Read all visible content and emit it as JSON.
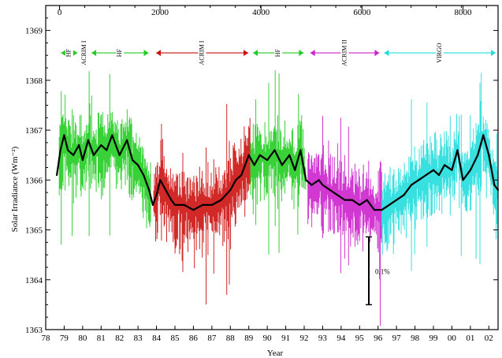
{
  "chart_data": {
    "type": "line",
    "title": "",
    "xlabel": "Year",
    "ylabel": "Solar Irradiance (Wm⁻²)",
    "xlim": [
      1978.0,
      2002.5
    ],
    "ylim": [
      1363,
      1369.5
    ],
    "grid": false,
    "x_ticks": [
      "78",
      "79",
      "80",
      "81",
      "82",
      "83",
      "84",
      "85",
      "86",
      "87",
      "88",
      "89",
      "90",
      "91",
      "92",
      "93",
      "94",
      "95",
      "96",
      "97",
      "98",
      "99",
      "00",
      "01",
      "02"
    ],
    "y_ticks": [
      1363,
      1364,
      1365,
      1366,
      1367,
      1368,
      1369
    ],
    "top_axis": {
      "label_values": [
        0,
        2000,
        4000,
        6000,
        8000
      ],
      "label_years": [
        1978.75,
        1984.19,
        1989.66,
        1995.13,
        2000.6
      ]
    },
    "instrument_bands": [
      {
        "name": "HF",
        "x_start": 1978.7,
        "x_end": 1979.85,
        "color": "#22cc22"
      },
      {
        "name": "ACRIM I",
        "x_start": 1979.85,
        "x_end": 1980.35,
        "color": "#22cc22"
      },
      {
        "name": "HF",
        "x_start": 1980.35,
        "x_end": 1983.7,
        "color": "#22cc22"
      },
      {
        "name": "ACRIM I",
        "x_start": 1983.85,
        "x_end": 1989.1,
        "color": "#cc1111"
      },
      {
        "name": "HF",
        "x_start": 1989.1,
        "x_end": 1992.1,
        "color": "#22cc22"
      },
      {
        "name": "ACRIM II",
        "x_start": 1992.2,
        "x_end": 1996.2,
        "color": "#cc22cc"
      },
      {
        "name": "VIRGO",
        "x_start": 1996.2,
        "x_end": 2002.5,
        "color": "#22dddd"
      }
    ],
    "annotation": {
      "text": "0.1%",
      "x": 1995.5,
      "y_from": 1363.5,
      "y_to": 1364.86
    },
    "series": [
      {
        "color": "#000000",
        "points": [
          [
            1978.6,
            1366.1
          ],
          [
            1978.8,
            1366.6
          ],
          [
            1979.0,
            1366.9
          ],
          [
            1979.2,
            1366.6
          ],
          [
            1979.5,
            1366.5
          ],
          [
            1979.8,
            1366.7
          ],
          [
            1980.0,
            1366.4
          ],
          [
            1980.3,
            1366.8
          ],
          [
            1980.6,
            1366.5
          ],
          [
            1981.0,
            1366.7
          ],
          [
            1981.3,
            1366.6
          ],
          [
            1981.6,
            1366.9
          ],
          [
            1982.0,
            1366.5
          ],
          [
            1982.4,
            1366.8
          ],
          [
            1982.7,
            1366.4
          ],
          [
            1983.0,
            1366.3
          ],
          [
            1983.3,
            1366.1
          ],
          [
            1983.6,
            1365.8
          ],
          [
            1983.8,
            1365.5
          ],
          [
            1984.0,
            1365.7
          ],
          [
            1984.2,
            1366.0
          ],
          [
            1984.5,
            1365.8
          ],
          [
            1984.8,
            1365.6
          ],
          [
            1985.0,
            1365.5
          ],
          [
            1985.5,
            1365.5
          ],
          [
            1986.0,
            1365.4
          ],
          [
            1986.5,
            1365.5
          ],
          [
            1987.0,
            1365.5
          ],
          [
            1987.5,
            1365.6
          ],
          [
            1988.0,
            1365.8
          ],
          [
            1988.3,
            1366.0
          ],
          [
            1988.6,
            1366.1
          ],
          [
            1989.0,
            1366.5
          ],
          [
            1989.3,
            1366.3
          ],
          [
            1989.6,
            1366.5
          ],
          [
            1990.0,
            1366.4
          ],
          [
            1990.4,
            1366.6
          ],
          [
            1990.8,
            1366.3
          ],
          [
            1991.2,
            1366.5
          ],
          [
            1991.5,
            1366.2
          ],
          [
            1991.8,
            1366.6
          ],
          [
            1992.1,
            1366.0
          ],
          [
            1992.4,
            1365.9
          ],
          [
            1992.8,
            1366.0
          ],
          [
            1993.0,
            1365.9
          ],
          [
            1993.4,
            1365.8
          ],
          [
            1993.8,
            1365.7
          ],
          [
            1994.2,
            1365.6
          ],
          [
            1994.6,
            1365.6
          ],
          [
            1995.0,
            1365.5
          ],
          [
            1995.4,
            1365.6
          ],
          [
            1995.8,
            1365.4
          ],
          [
            1996.2,
            1365.4
          ],
          [
            1996.6,
            1365.5
          ],
          [
            1997.0,
            1365.6
          ],
          [
            1997.4,
            1365.7
          ],
          [
            1997.8,
            1365.9
          ],
          [
            1998.2,
            1366.0
          ],
          [
            1998.6,
            1366.1
          ],
          [
            1999.0,
            1366.2
          ],
          [
            1999.3,
            1366.1
          ],
          [
            1999.6,
            1366.3
          ],
          [
            2000.0,
            1366.2
          ],
          [
            2000.3,
            1366.6
          ],
          [
            2000.6,
            1366.0
          ],
          [
            2001.0,
            1366.2
          ],
          [
            2001.4,
            1366.5
          ],
          [
            2001.7,
            1366.9
          ],
          [
            2002.0,
            1366.5
          ],
          [
            2002.3,
            1365.9
          ],
          [
            2002.5,
            1365.8
          ]
        ]
      }
    ]
  }
}
